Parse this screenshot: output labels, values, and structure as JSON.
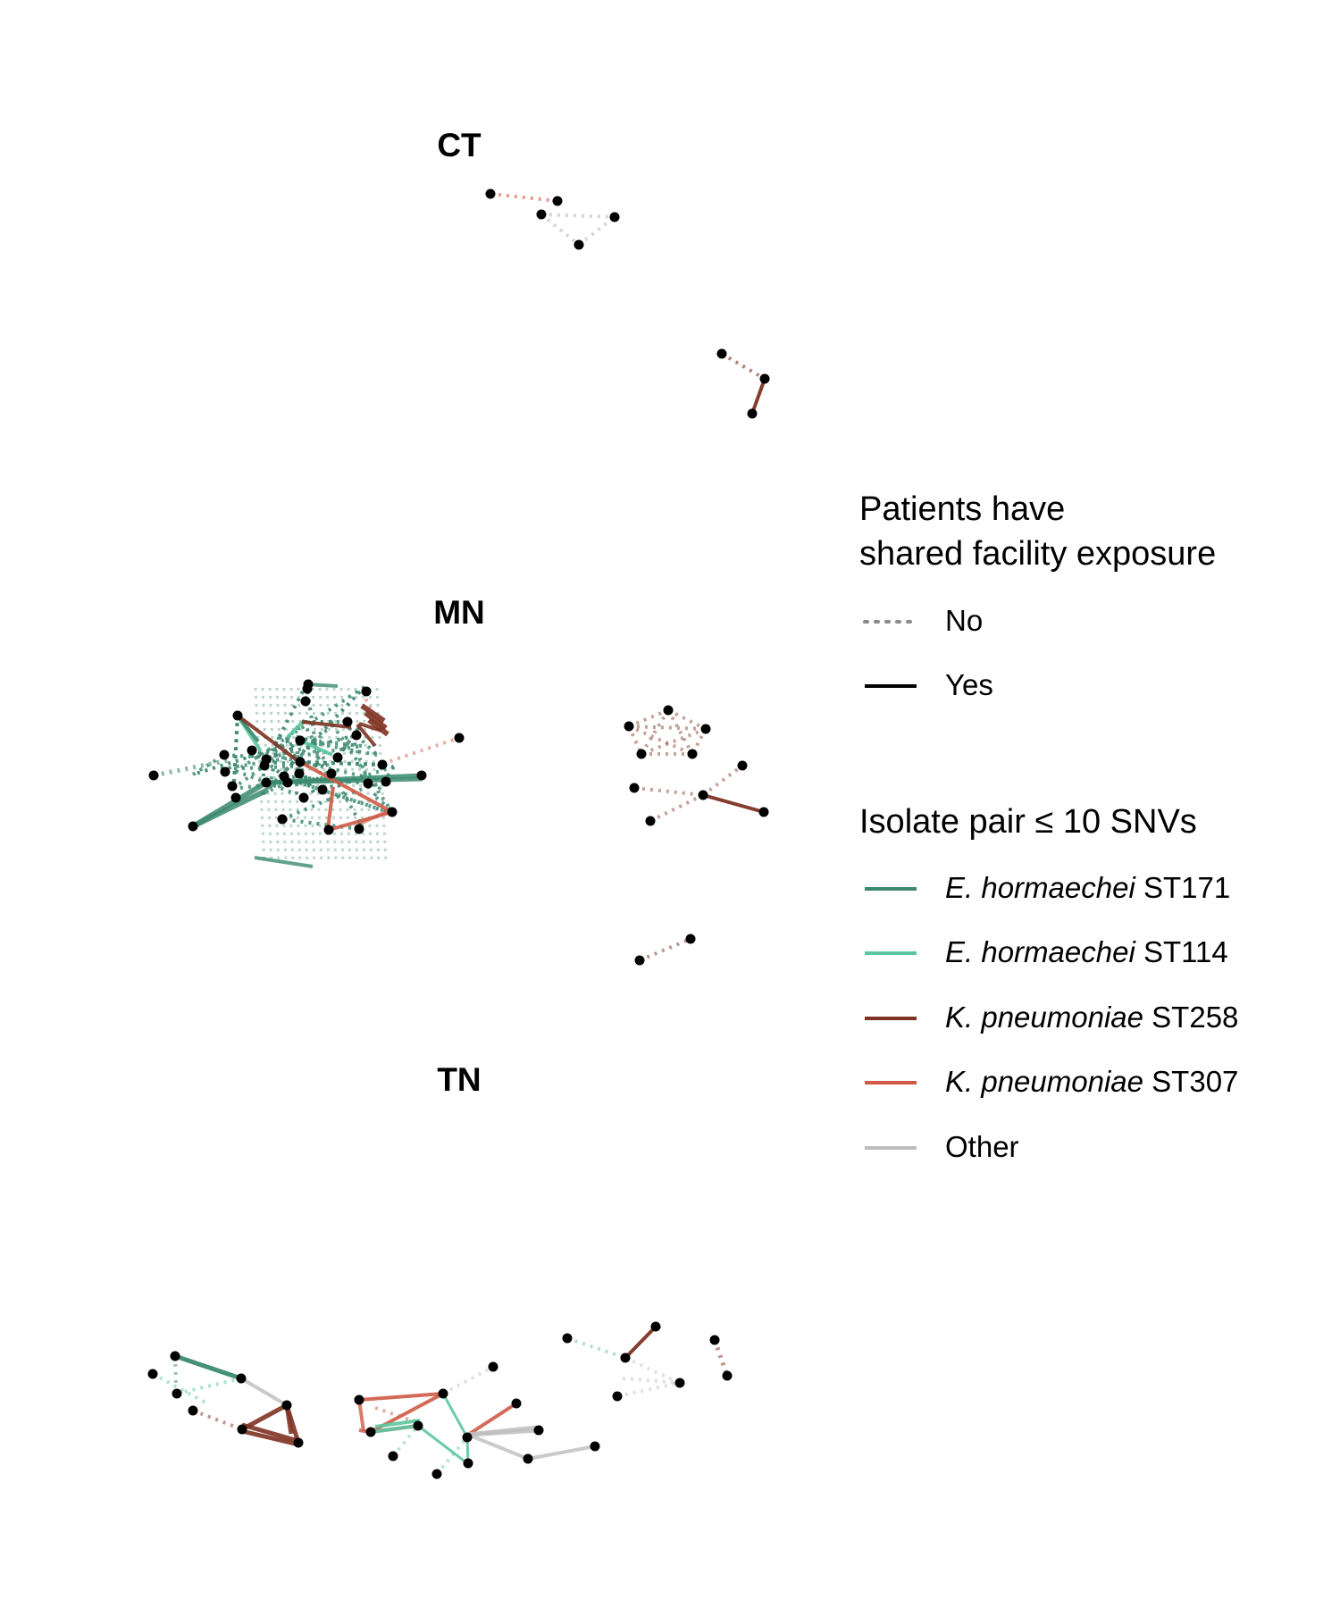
{
  "panels": [
    {
      "key": "ct",
      "label": "CT"
    },
    {
      "key": "mn",
      "label": "MN"
    },
    {
      "key": "tn",
      "label": "TN"
    }
  ],
  "legend_exposure": {
    "title_line1": "Patients have",
    "title_line2": "shared facility exposure",
    "items": [
      {
        "key": "no",
        "label": "No",
        "style": "dotted"
      },
      {
        "key": "yes",
        "label": "Yes",
        "style": "solid"
      }
    ]
  },
  "legend_snv": {
    "title": "Isolate pair ≤ 10 SNVs",
    "items": [
      {
        "key": "eh171",
        "species": "E. hormaechei",
        "st": "ST171",
        "color": "#3b8a70"
      },
      {
        "key": "eh114",
        "species": "E. hormaechei",
        "st": "ST114",
        "color": "#5cc6a0"
      },
      {
        "key": "kp258",
        "species": "K. pneumoniae",
        "st": "ST258",
        "color": "#7e3222"
      },
      {
        "key": "kp307",
        "species": "K. pneumoniae",
        "st": "ST307",
        "color": "#cf5a46"
      },
      {
        "key": "other",
        "species": "",
        "st": "Other",
        "color": "#bdbdbd"
      }
    ]
  },
  "colors": {
    "eh171": "#3b8a70",
    "eh114": "#5cc6a0",
    "kp258": "#7e3222",
    "kp307": "#cf5a46",
    "other": "#bdbdbd",
    "node": "#000000"
  }
}
